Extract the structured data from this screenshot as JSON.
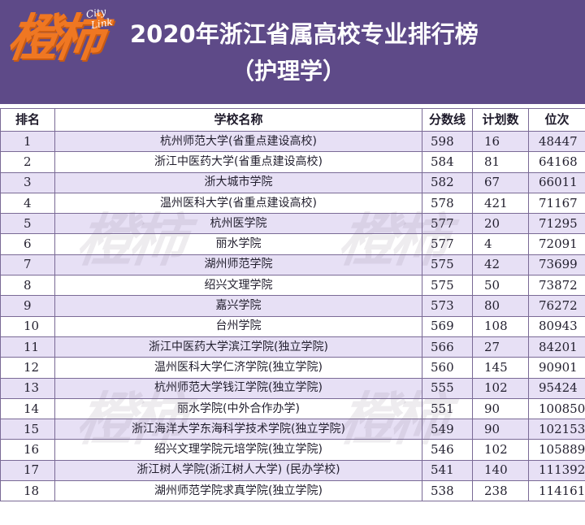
{
  "header": {
    "logo_text": "橙柿",
    "logo_city": "City",
    "logo_link": "Link",
    "title": "2020年浙江省属高校专业排行榜",
    "subtitle": "（护理学）"
  },
  "colors": {
    "header_bg": "#5e4a88",
    "logo_orange": "#ef7722",
    "row_odd": "#e5ddf4",
    "row_even": "#ffffff",
    "grid": "#7a6a96"
  },
  "table": {
    "columns": [
      "排名",
      "学校名称",
      "分数线",
      "计划数",
      "位次"
    ],
    "rows": [
      [
        "1",
        "杭州师范大学(省重点建设高校)",
        "598",
        "16",
        "48447"
      ],
      [
        "2",
        "浙江中医药大学(省重点建设高校)",
        "584",
        "81",
        "64168"
      ],
      [
        "3",
        "浙大城市学院",
        "582",
        "67",
        "66011"
      ],
      [
        "4",
        "温州医科大学(省重点建设高校)",
        "578",
        "421",
        "71167"
      ],
      [
        "5",
        "杭州医学院",
        "577",
        "20",
        "71295"
      ],
      [
        "6",
        "丽水学院",
        "577",
        "4",
        "72091"
      ],
      [
        "7",
        "湖州师范学院",
        "575",
        "42",
        "73699"
      ],
      [
        "8",
        "绍兴文理学院",
        "575",
        "50",
        "73872"
      ],
      [
        "9",
        "嘉兴学院",
        "573",
        "80",
        "76272"
      ],
      [
        "10",
        "台州学院",
        "569",
        "108",
        "80943"
      ],
      [
        "11",
        "浙江中医药大学滨江学院(独立学院)",
        "566",
        "27",
        "84201"
      ],
      [
        "12",
        "温州医科大学仁济学院(独立学院)",
        "560",
        "145",
        "90901"
      ],
      [
        "13",
        "杭州师范大学钱江学院(独立学院)",
        "555",
        "102",
        "95424"
      ],
      [
        "14",
        "丽水学院(中外合作办学)",
        "551",
        "90",
        "100850"
      ],
      [
        "15",
        "浙江海洋大学东海科学技术学院(独立学院)",
        "549",
        "90",
        "102153"
      ],
      [
        "16",
        "绍兴文理学院元培学院(独立学院)",
        "546",
        "102",
        "105889"
      ],
      [
        "17",
        "浙江树人学院(浙江树人大学) (民办学校)",
        "541",
        "140",
        "111392"
      ],
      [
        "18",
        "湖州师范学院求真学院(独立学院)",
        "538",
        "238",
        "114161"
      ]
    ]
  },
  "watermark": "橙柿"
}
